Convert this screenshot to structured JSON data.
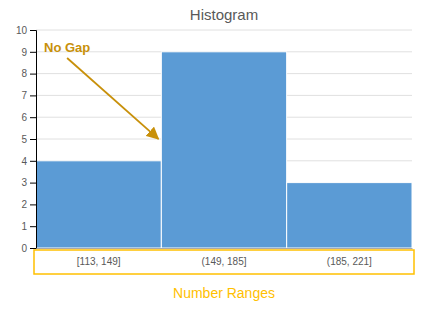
{
  "chart_data": {
    "type": "bar",
    "title": "Histogram",
    "x_label": "Number Ranges",
    "categories": [
      "[113, 149]",
      "(149, 185]",
      "(185, 221]"
    ],
    "values": [
      4,
      9,
      3
    ],
    "color": "#5B9BD5",
    "ylim": [
      0,
      10
    ],
    "yticks": [
      0,
      1,
      2,
      3,
      4,
      5,
      6,
      7,
      8,
      9,
      10
    ],
    "grid": true,
    "annotations": [
      {
        "text": "No Gap"
      }
    ]
  }
}
